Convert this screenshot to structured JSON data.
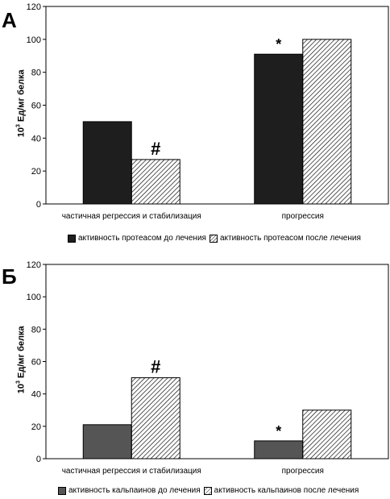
{
  "panels": [
    {
      "letter": "А",
      "ylabel_exp": "3",
      "ylabel_rest": " Ед/мг белка",
      "ylabel_base": "10",
      "legend": [
        "активность протеасом до лечения",
        "активность протеасом после лечения"
      ]
    },
    {
      "letter": "Б",
      "ylabel_exp": "3",
      "ylabel_rest": " Ед/мг белка",
      "ylabel_base": "10",
      "legend": [
        "активность кальпаинов до лечения",
        "активность кальпаинов после лечения"
      ]
    }
  ],
  "chart_data": [
    {
      "type": "bar",
      "title": "",
      "ylabel": "10³ Ед/мг белка",
      "ylim": [
        0,
        120
      ],
      "yticks": [
        0,
        20,
        40,
        60,
        80,
        100,
        120
      ],
      "categories": [
        "частичная регрессия и стабилизация",
        "прогрессия"
      ],
      "series": [
        {
          "name": "активность протеасом до лечения",
          "values": [
            50,
            91
          ],
          "color": "#1e1e1e",
          "pattern": "solid"
        },
        {
          "name": "активность протеасом после лечения",
          "values": [
            27,
            100
          ],
          "color": "#ffffff",
          "pattern": "hatch"
        }
      ],
      "annotations": [
        {
          "text": "#",
          "category": 0,
          "series": 1
        },
        {
          "text": "*",
          "category": 1,
          "series": 0
        }
      ],
      "legend_position": "bottom"
    },
    {
      "type": "bar",
      "title": "",
      "ylabel": "10³ Ед/мг белка",
      "ylim": [
        0,
        120
      ],
      "yticks": [
        0,
        20,
        40,
        60,
        80,
        100,
        120
      ],
      "categories": [
        "частичная регрессия и стабилизация",
        "прогрессия"
      ],
      "series": [
        {
          "name": "активность кальпаинов до лечения",
          "values": [
            21,
            11
          ],
          "color": "#555555",
          "pattern": "solid"
        },
        {
          "name": "активность кальпаинов после лечения",
          "values": [
            50,
            30
          ],
          "color": "#ffffff",
          "pattern": "hatch"
        }
      ],
      "annotations": [
        {
          "text": "#",
          "category": 0,
          "series": 1
        },
        {
          "text": "*",
          "category": 1,
          "series": 0
        }
      ],
      "legend_position": "bottom"
    }
  ]
}
